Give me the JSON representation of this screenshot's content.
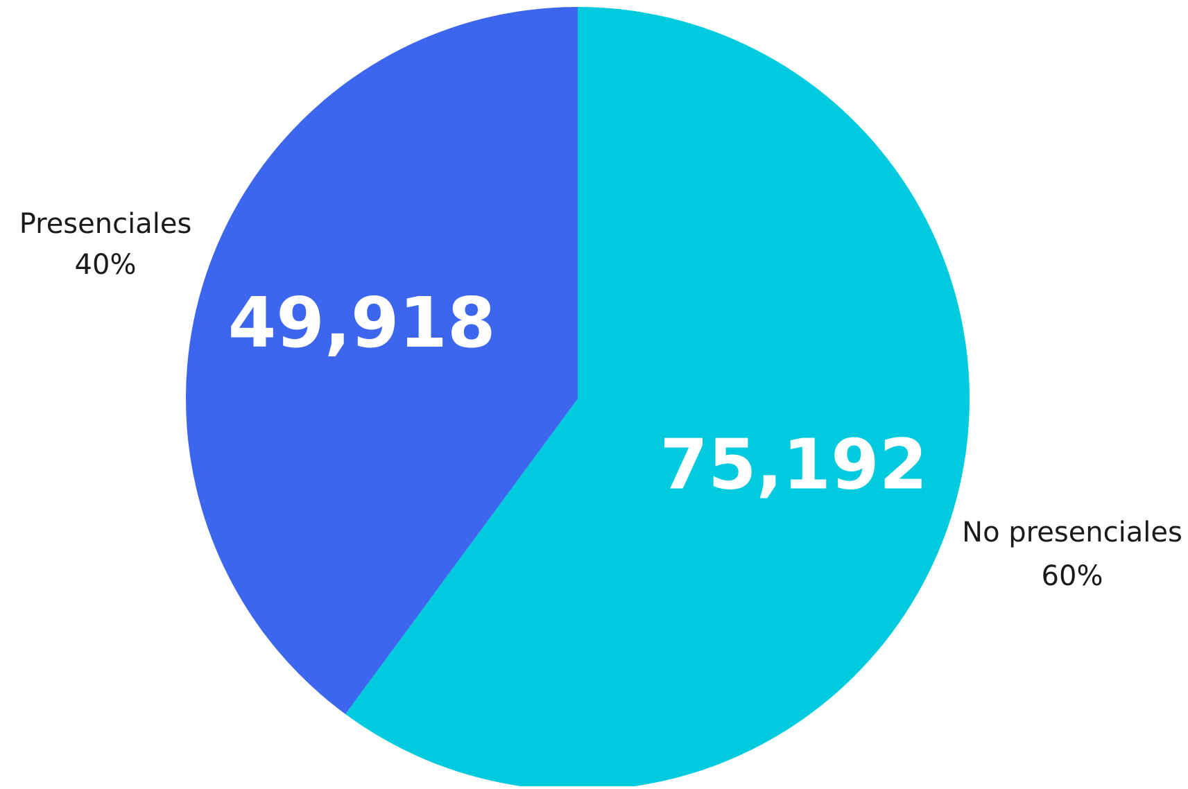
{
  "chart_data": {
    "type": "pie",
    "start_angle_deg": 0,
    "direction": "clockwise",
    "slices": [
      {
        "name": "No presenciales",
        "value": 75192,
        "value_label": "75,192",
        "percent_label": "60%",
        "color": "#00CADD"
      },
      {
        "name": "Presenciales",
        "value": 49918,
        "value_label": "49,918",
        "percent_label": "40%",
        "color": "#3D66EE"
      }
    ],
    "legend": "none"
  }
}
